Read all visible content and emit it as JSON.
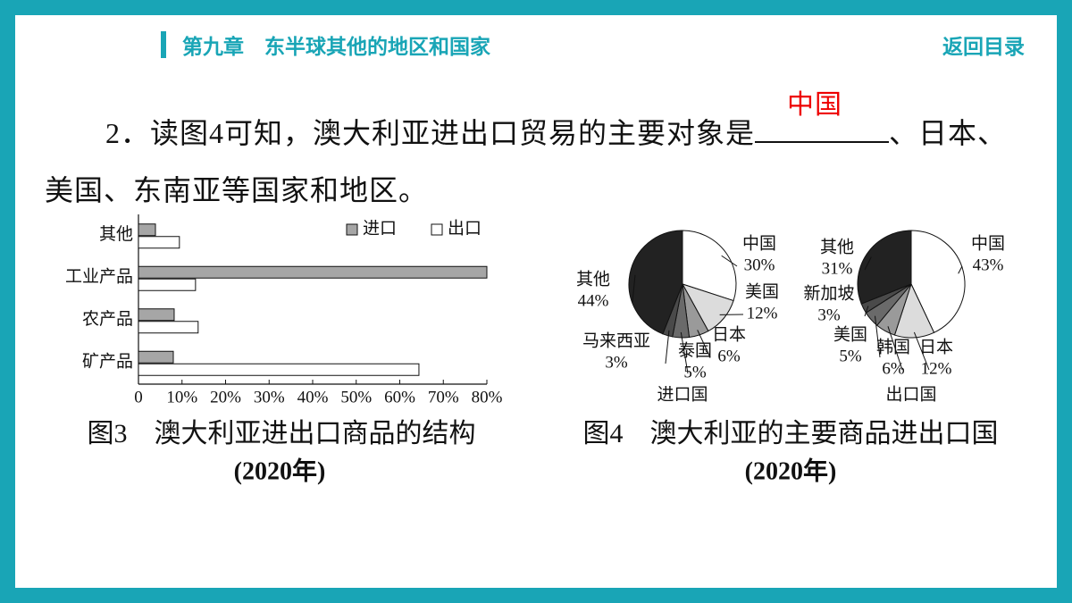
{
  "header": {
    "chapter": "第九章　东半球其他的地区和国家",
    "back": "返回目录"
  },
  "question": {
    "before": "2．读图4可知，澳大利亚进出口贸易的主要对象是",
    "answer": "中国",
    "after": "、日本、美国、东南亚等国家和地区。"
  },
  "chart_data": [
    {
      "type": "hbar",
      "title": "图3　澳大利亚进出口商品的结构",
      "subtitle": "(2020年)",
      "categories": [
        "其他",
        "工业产品",
        "农产品",
        "矿产品"
      ],
      "series": [
        {
          "name": "进口",
          "color": "#a6a6a6",
          "values": [
            3.9,
            80,
            8.2,
            8
          ]
        },
        {
          "name": "出口",
          "color": "#ffffff",
          "values": [
            9.4,
            13.1,
            13.7,
            64.4
          ]
        }
      ],
      "xlim": [
        0,
        80
      ],
      "xticks": [
        0,
        {
          "value": 10,
          "label": "10%"
        },
        {
          "value": 20,
          "label": "20%"
        },
        {
          "value": 30,
          "label": "30%"
        },
        {
          "value": 40,
          "label": "40%"
        },
        {
          "value": 50,
          "label": "50%"
        },
        {
          "value": 60,
          "label": "60%"
        },
        {
          "value": 70,
          "label": "70%"
        },
        {
          "value": 80,
          "label": "80%"
        }
      ],
      "legend": "top-right"
    },
    {
      "type": "pie",
      "xlabel": "进口国",
      "categories": [
        "中国",
        "美国",
        "日本",
        "泰国",
        "马来西亚",
        "其他"
      ],
      "values": [
        30,
        12,
        6,
        5,
        3,
        44
      ],
      "value_labels": [
        "30%",
        "12%",
        "6%",
        "5%",
        "3%",
        "44%"
      ],
      "colors": [
        "#ffffff",
        "#dcdcdc",
        "#9a9a9a",
        "#6a6a6a",
        "#4a4a4a",
        "#222222"
      ]
    },
    {
      "type": "pie",
      "xlabel": "出口国",
      "categories": [
        "中国",
        "日本",
        "韩国",
        "美国",
        "新加坡",
        "其他"
      ],
      "values": [
        43,
        12,
        6,
        5,
        3,
        31
      ],
      "value_labels": [
        "43%",
        "12%",
        "6%",
        "5%",
        "3%",
        "31%"
      ],
      "colors": [
        "#ffffff",
        "#dcdcdc",
        "#9a9a9a",
        "#6a6a6a",
        "#4a4a4a",
        "#222222"
      ]
    }
  ],
  "fig4": {
    "title": "图4　澳大利亚的主要商品进出口国",
    "subtitle": "(2020年)"
  }
}
